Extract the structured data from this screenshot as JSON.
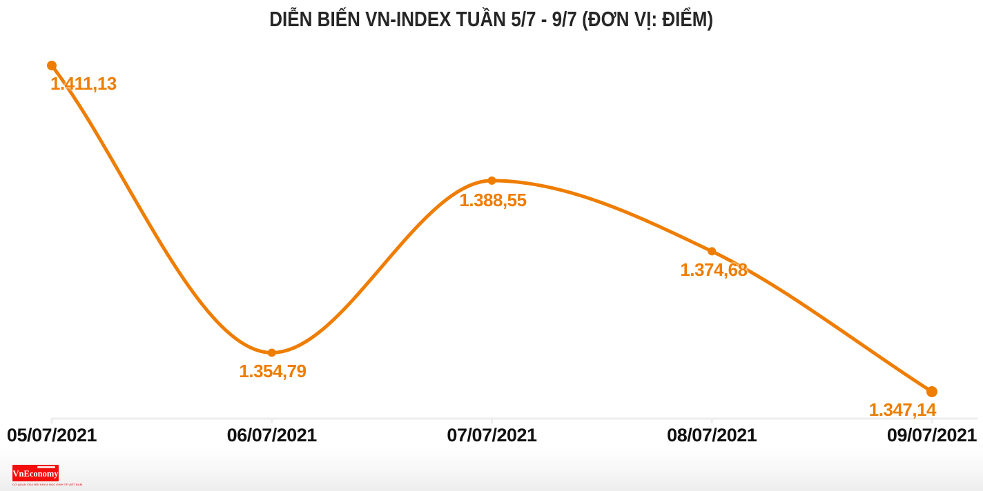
{
  "title": "DIỄN BIẾN VN-INDEX TUẦN 5/7 - 9/7 (ĐƠN VỊ: ĐIỂM)",
  "chart_data": {
    "type": "line",
    "title": "DIỄN BIẾN VN-INDEX TUẦN 5/7 - 9/7 (ĐƠN VỊ: ĐIỂM)",
    "unit": "ĐIỂM",
    "categories": [
      "05/07/2021",
      "06/07/2021",
      "07/07/2021",
      "08/07/2021",
      "09/07/2021"
    ],
    "series": [
      {
        "name": "VN-Index",
        "values": [
          1411.13,
          1354.79,
          1388.55,
          1374.68,
          1347.14
        ]
      }
    ],
    "point_labels": [
      "1.411,13",
      "1.354,79",
      "1.388,55",
      "1.374,68",
      "1.347,14"
    ],
    "line_color": "#ee7d01",
    "marker_color": "#ee7d01",
    "point_label_color": "#ee7d01",
    "axis_color": "#ededed",
    "axis_label_color": "#111111",
    "title_color": "#262626",
    "grid": false,
    "legend_position": "none",
    "ylim": [
      1340,
      1415
    ],
    "smooth": true
  },
  "footer": {
    "logo_text": "VnEconomy",
    "logo_tagline": "CƠ QUAN CỦA HỘI KHOA HỌC KINH TẾ VIỆT NAM",
    "logo_bg": "#f30e0e"
  }
}
